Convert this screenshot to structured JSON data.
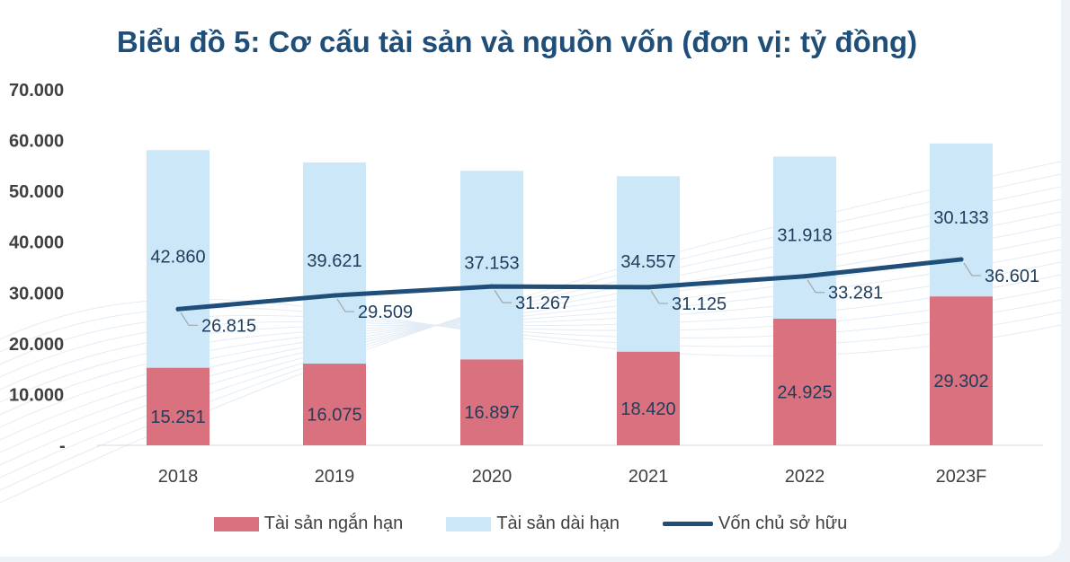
{
  "chart_data": {
    "type": "bar",
    "stacked": true,
    "title": "Biểu đồ 5: Cơ cấu tài sản và nguồn vốn (đơn vị: tỷ đồng)",
    "categories": [
      "2018",
      "2019",
      "2020",
      "2021",
      "2022",
      "2023F"
    ],
    "series": [
      {
        "name": "Tài sản ngắn hạn",
        "kind": "bar",
        "color": "#d9717e",
        "values": [
          15251,
          16075,
          16897,
          18420,
          24925,
          29302
        ],
        "labels": [
          "15.251",
          "16.075",
          "16.897",
          "18.420",
          "24.925",
          "29.302"
        ]
      },
      {
        "name": "Tài sản dài hạn",
        "kind": "bar",
        "color": "#cce7f7",
        "values": [
          42860,
          39621,
          37153,
          34557,
          31918,
          30133
        ],
        "labels": [
          "42.860",
          "39.621",
          "37.153",
          "34.557",
          "31.918",
          "30.133"
        ]
      },
      {
        "name": "Vốn chủ sở hữu",
        "kind": "line",
        "color": "#1f4e79",
        "values": [
          26815,
          29509,
          31267,
          31125,
          33281,
          36601
        ],
        "labels": [
          "26.815",
          "29.509",
          "31.267",
          "31.125",
          "33.281",
          "36.601"
        ]
      }
    ],
    "ylim": [
      0,
      70000
    ],
    "yticks": [
      "-",
      "10.000",
      "20.000",
      "30.000",
      "40.000",
      "50.000",
      "60.000",
      "70.000"
    ],
    "xlabel": "",
    "ylabel": "",
    "legend": "bottom"
  }
}
